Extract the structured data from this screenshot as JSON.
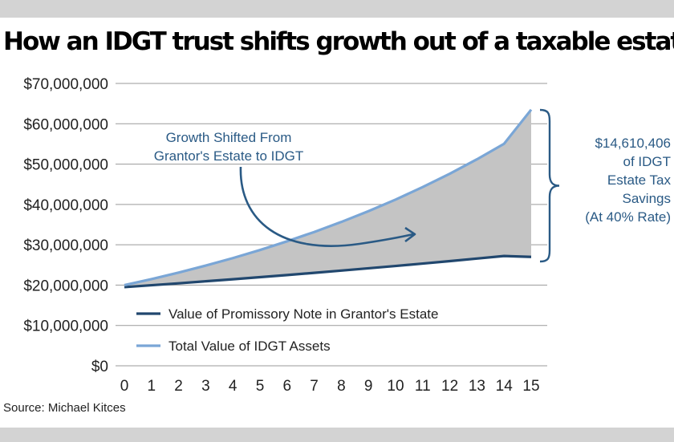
{
  "title": "How an IDGT trust shifts growth out of a taxable estate",
  "source": "Source: Michael Kitces",
  "colors": {
    "note_line": "#21476e",
    "idgt_line": "#7aa6d6",
    "fill": "#c4c4c4",
    "annotation": "#2a5a85",
    "bars": "#d3d3d3"
  },
  "chart_data": {
    "type": "area",
    "title": "How an IDGT trust shifts growth out of a taxable estate",
    "xlabel": "",
    "ylabel": "",
    "x": [
      0,
      1,
      2,
      3,
      4,
      5,
      6,
      7,
      8,
      9,
      10,
      11,
      12,
      13,
      14,
      15
    ],
    "x_tick_labels": [
      "0",
      "1",
      "2",
      "3",
      "4",
      "5",
      "6",
      "7",
      "8",
      "9",
      "10",
      "11",
      "12",
      "13",
      "14",
      "15"
    ],
    "y_tick_labels": [
      "$70,000,000",
      "$60,000,000",
      "$50,000,000",
      "$40,000,000",
      "$30,000,000",
      "$20,000,000",
      "$10,000,000",
      "$0"
    ],
    "y_ticks": [
      70000000,
      60000000,
      50000000,
      40000000,
      30000000,
      20000000,
      10000000,
      0
    ],
    "ylim": [
      0,
      70000000
    ],
    "xlim": [
      0,
      15
    ],
    "grid": "horizontal",
    "legend_position": "bottom-left",
    "series": [
      {
        "name": "Value of Promissory Note in Grantor's Estate",
        "values": [
          19500000,
          19970000,
          20450000,
          20950000,
          21450000,
          21970000,
          22500000,
          23040000,
          23600000,
          24170000,
          24750000,
          25340000,
          25950000,
          26580000,
          27220000,
          27000000
        ]
      },
      {
        "name": "Total Value of IDGT Assets",
        "values": [
          20000000,
          21500000,
          23110000,
          24840000,
          26700000,
          28700000,
          30860000,
          33170000,
          35660000,
          38330000,
          41200000,
          44300000,
          47620000,
          51190000,
          55030000,
          63500000
        ]
      }
    ],
    "annotations": {
      "shifted_line1": "Growth Shifted From",
      "shifted_line2": "Grantor's Estate to IDGT",
      "savings_lines": [
        "$14,610,406",
        "of IDGT",
        "Estate Tax",
        "Savings",
        "(At 40% Rate)"
      ]
    }
  }
}
